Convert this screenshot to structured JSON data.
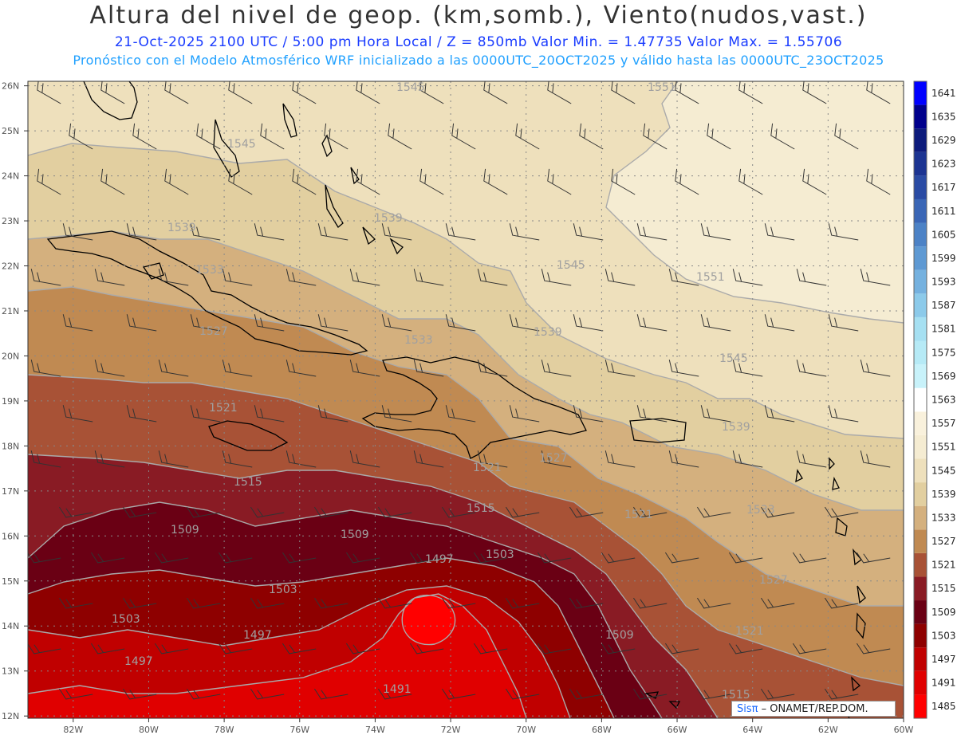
{
  "title": "Altura del nivel de geop. (km,somb.), Viento(nudos,vast.)",
  "subtitle_line1": "21-Oct-2025   2100 UTC / 5:00 pm Hora Local / Z = 850mb     Valor Min. = 1.47735   Valor Max. = 1.55706",
  "subtitle_line2": "Pronóstico con el Modelo Atmosférico WRF inicializado a las 0000UTC_20OCT2025 y válido hasta las  0000UTC_23OCT2025",
  "credit": {
    "brand": "Sisπ",
    "rest": " – ONAMET/REP.DOM."
  },
  "chart_data": {
    "type": "map",
    "lat_ticks": [
      "26N",
      "25N",
      "24N",
      "23N",
      "22N",
      "21N",
      "20N",
      "19N",
      "18N",
      "17N",
      "16N",
      "15N",
      "14N",
      "13N",
      "12N"
    ],
    "lon_ticks": [
      "82W",
      "80W",
      "78W",
      "76W",
      "74W",
      "72W",
      "70W",
      "68W",
      "66W",
      "64W",
      "62W",
      "60W"
    ],
    "colorbar": {
      "levels": [
        1485,
        1491,
        1497,
        1503,
        1509,
        1515,
        1521,
        1527,
        1533,
        1539,
        1545,
        1551,
        1557,
        1563,
        1569,
        1575,
        1581,
        1587,
        1593,
        1599,
        1605,
        1611,
        1617,
        1623,
        1629,
        1635,
        1641
      ],
      "colors": [
        "#ff0000",
        "#e00000",
        "#c00000",
        "#8e0000",
        "#6a0014",
        "#891b24",
        "#a85236",
        "#c08a52",
        "#d4b07e",
        "#e2cfa0",
        "#eee0bc",
        "#f5ecd2",
        "#f9f1dc",
        "#ffffff",
        "#c8f2fa",
        "#b6eaf6",
        "#a6e0f2",
        "#8ccaea",
        "#75b1df",
        "#5e99d3",
        "#4c82c6",
        "#3a66b6",
        "#2a4ba4",
        "#1c3492",
        "#0d1b7c",
        "#00008c",
        "#0000ff"
      ]
    },
    "contour_labels": [
      {
        "text": "1545"
      },
      {
        "text": "1551"
      },
      {
        "text": "1545"
      },
      {
        "text": "1539"
      },
      {
        "text": "1539"
      },
      {
        "text": "1533"
      },
      {
        "text": "1545"
      },
      {
        "text": "1551"
      },
      {
        "text": "1539"
      },
      {
        "text": "1527"
      },
      {
        "text": "1533"
      },
      {
        "text": "1545"
      },
      {
        "text": "1521"
      },
      {
        "text": "1539"
      },
      {
        "text": "1527"
      },
      {
        "text": "1521"
      },
      {
        "text": "1515"
      },
      {
        "text": "1515"
      },
      {
        "text": "1521"
      },
      {
        "text": "1533"
      },
      {
        "text": "1509"
      },
      {
        "text": "1509"
      },
      {
        "text": "1497"
      },
      {
        "text": "1503"
      },
      {
        "text": "1503"
      },
      {
        "text": "1503"
      },
      {
        "text": "1497"
      },
      {
        "text": "1527"
      },
      {
        "text": "1509"
      },
      {
        "text": "1521"
      },
      {
        "text": "1497"
      },
      {
        "text": "1491"
      },
      {
        "text": "1515"
      }
    ]
  }
}
